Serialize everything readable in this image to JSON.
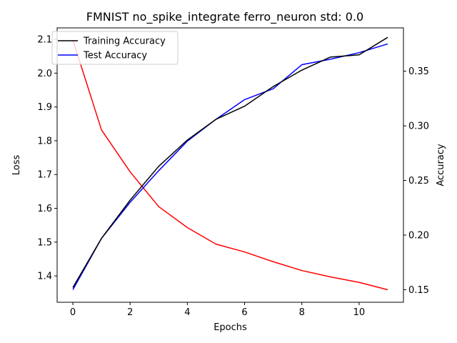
{
  "chart_data": {
    "type": "line",
    "title": "FMNIST no_spike_integrate ferro_neuron std: 0.0",
    "xlabel": "Epochs",
    "ylabel_left": "Loss",
    "ylabel_right": "Accuracy",
    "x": [
      0,
      1,
      2,
      3,
      4,
      5,
      6,
      7,
      8,
      9,
      10,
      11
    ],
    "xlim": [
      -0.55,
      11.55
    ],
    "xticks": [
      "0",
      "2",
      "4",
      "6",
      "8",
      "10"
    ],
    "ylim_left": [
      1.322,
      2.134
    ],
    "yticks_left": [
      "1.4",
      "1.5",
      "1.6",
      "1.7",
      "1.8",
      "1.9",
      "2.0",
      "2.1"
    ],
    "ylim_right": [
      0.1385,
      0.3897
    ],
    "yticks_right": [
      "0.15",
      "0.20",
      "0.25",
      "0.30",
      "0.35"
    ],
    "grid": false,
    "legend_position": "top-left",
    "series": [
      {
        "name": "Training Accuracy",
        "axis": "right",
        "color": "#000000",
        "values": [
          0.152,
          0.197,
          0.232,
          0.263,
          0.287,
          0.306,
          0.318,
          0.336,
          0.351,
          0.363,
          0.365,
          0.381
        ]
      },
      {
        "name": "Test Accuracy",
        "axis": "right",
        "color": "#0000ff",
        "values": [
          0.15,
          0.197,
          0.23,
          0.259,
          0.286,
          0.306,
          0.324,
          0.334,
          0.356,
          0.361,
          0.367,
          0.375
        ]
      },
      {
        "name": "",
        "axis": "left",
        "color": "#ff0000",
        "values": [
          2.098,
          1.832,
          1.708,
          1.605,
          1.543,
          1.494,
          1.471,
          1.442,
          1.416,
          1.397,
          1.381,
          1.359
        ]
      }
    ]
  }
}
